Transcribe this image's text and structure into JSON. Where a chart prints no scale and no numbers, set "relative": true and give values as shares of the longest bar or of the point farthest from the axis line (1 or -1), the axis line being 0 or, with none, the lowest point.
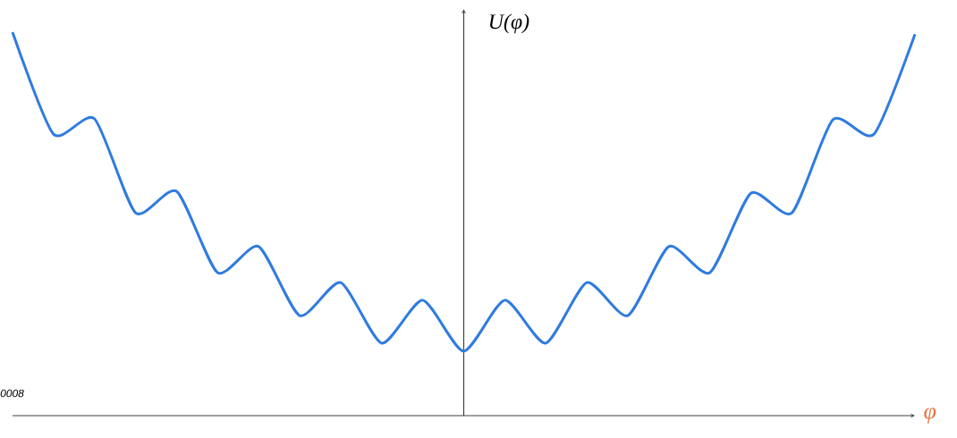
{
  "chart_data": {
    "type": "line",
    "relative": true,
    "ylabel": "U(φ)",
    "xlabel": "φ",
    "color": "#2f7be0",
    "annotations": [
      "0008"
    ],
    "categories": [
      null,
      null,
      null,
      null,
      null,
      null,
      null,
      null,
      null,
      null,
      null,
      null,
      null,
      null,
      null,
      null,
      null,
      null,
      null,
      null,
      null,
      null,
      null
    ],
    "values": [
      1.0,
      0.734,
      0.774,
      0.529,
      0.585,
      0.373,
      0.441,
      0.261,
      0.347,
      0.189,
      0.301,
      0.168,
      0.301,
      0.189,
      0.347,
      0.261,
      0.441,
      0.373,
      0.58,
      0.529,
      0.772,
      0.734,
      0.995
    ]
  }
}
